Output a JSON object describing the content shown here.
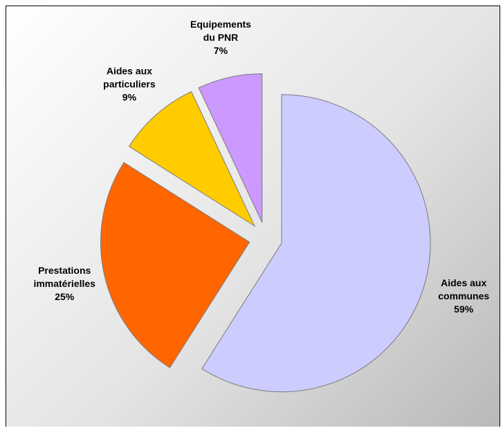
{
  "chart_data": {
    "type": "pie",
    "title": "",
    "exploded": true,
    "slices": [
      {
        "name": "Aides aux communes",
        "lines": [
          "Aides aux",
          "communes"
        ],
        "value": 59,
        "percent_label": "59%",
        "color": "#CCCCFF"
      },
      {
        "name": "Prestations immatérielles",
        "lines": [
          "Prestations",
          "immatérielles"
        ],
        "value": 25,
        "percent_label": "25%",
        "color": "#FF6600"
      },
      {
        "name": "Aides aux particuliers",
        "lines": [
          "Aides aux",
          "particuliers"
        ],
        "value": 9,
        "percent_label": "9%",
        "color": "#FFCC00"
      },
      {
        "name": "Equipements du PNR",
        "lines": [
          "Equipements",
          "du PNR"
        ],
        "value": 7,
        "percent_label": "7%",
        "color": "#CC99FF"
      }
    ],
    "legend": "none",
    "grid": false
  }
}
